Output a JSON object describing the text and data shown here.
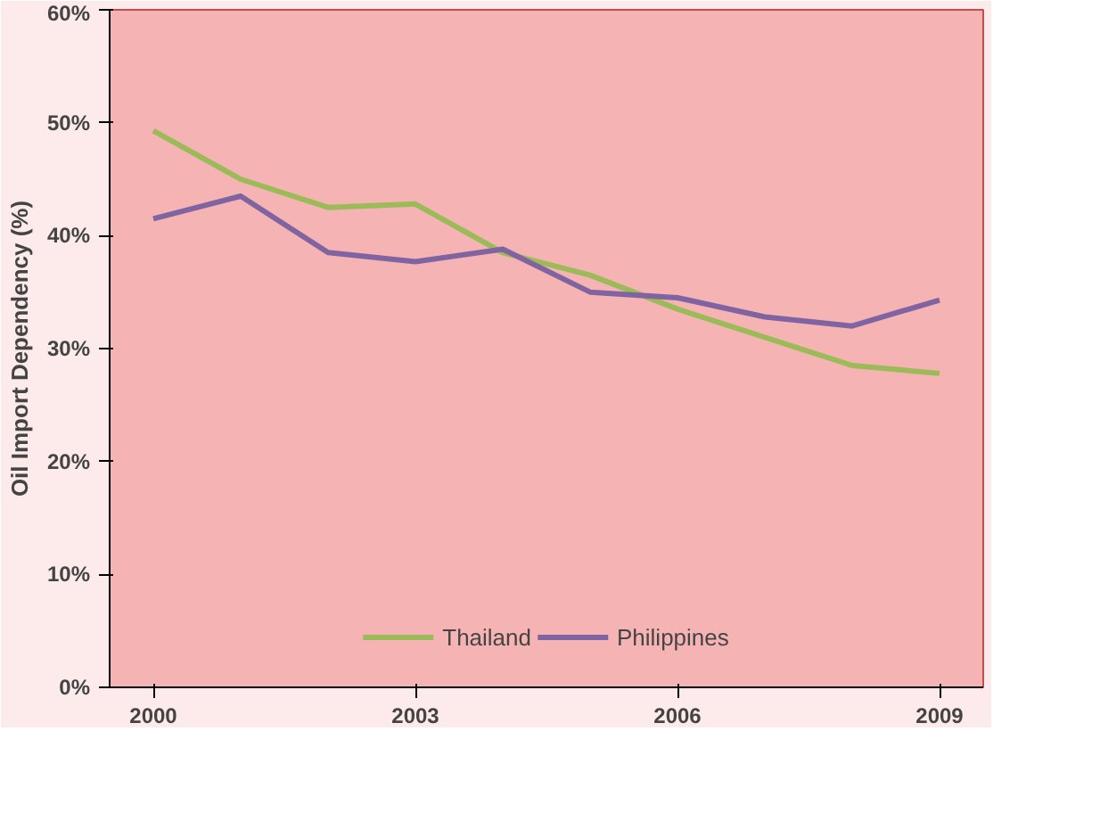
{
  "chart_data": {
    "type": "line",
    "ylabel": "Oil Import Dependency (%)",
    "x": [
      2000,
      2001,
      2002,
      2003,
      2004,
      2005,
      2006,
      2007,
      2008,
      2009
    ],
    "series": [
      {
        "name": "Thailand",
        "color": "#9bbb59",
        "values": [
          49.3,
          45,
          42.5,
          42.8,
          38.5,
          36.5,
          33.5,
          31,
          28.5,
          27.8
        ]
      },
      {
        "name": "Philippines",
        "color": "#8064a2",
        "values": [
          41.5,
          43.5,
          38.5,
          37.7,
          38.8,
          35,
          34.5,
          32.8,
          32,
          34.3
        ]
      }
    ],
    "xlim": [
      1999.5,
      2009.5
    ],
    "xticks": [
      2000,
      2003,
      2006,
      2009
    ],
    "ylim": [
      0,
      60
    ],
    "yticks": [
      {
        "value": 0,
        "label": "0%"
      },
      {
        "value": 10,
        "label": "10%"
      },
      {
        "value": 20,
        "label": "20%"
      },
      {
        "value": 30,
        "label": "30%"
      },
      {
        "value": 40,
        "label": "40%"
      },
      {
        "value": 50,
        "label": "50%"
      },
      {
        "value": 60,
        "label": "60%"
      }
    ],
    "grid": false,
    "legend": "bottom",
    "marker": "none",
    "line_style": "solid"
  }
}
